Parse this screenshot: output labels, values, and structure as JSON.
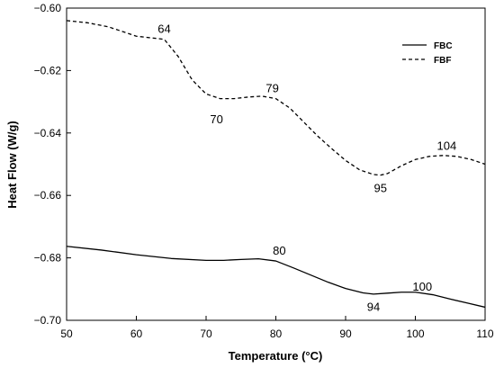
{
  "chart_data": {
    "type": "line",
    "xlabel": "Temperature (°C)",
    "ylabel": "Heat Flow (W/g)",
    "xlim": [
      50,
      110
    ],
    "ylim": [
      -0.7,
      -0.6
    ],
    "x_ticks": [
      50,
      60,
      70,
      80,
      90,
      100,
      110
    ],
    "y_ticks": [
      -0.6,
      -0.62,
      -0.64,
      -0.66,
      -0.68,
      -0.7
    ],
    "x_tick_labels": [
      "50",
      "60",
      "70",
      "80",
      "90",
      "100",
      "110"
    ],
    "y_tick_labels": [
      "-0.60",
      "-0.62",
      "-0.64",
      "-0.66",
      "-0.68",
      "-0.70"
    ],
    "grid": false,
    "legend_position": "top-right",
    "series": [
      {
        "name": "FBC",
        "style": "solid",
        "color": "#000000",
        "x": [
          50,
          55,
          60,
          65,
          70,
          72.5,
          75,
          77.5,
          80,
          82.5,
          85,
          87.5,
          90,
          92.5,
          94,
          96,
          98,
          100,
          102.5,
          105,
          107.5,
          110
        ],
        "y": [
          -0.6763,
          -0.6775,
          -0.679,
          -0.6802,
          -0.6808,
          -0.6808,
          -0.6805,
          -0.6803,
          -0.681,
          -0.6832,
          -0.6855,
          -0.6878,
          -0.6898,
          -0.6912,
          -0.6916,
          -0.6913,
          -0.691,
          -0.691,
          -0.6918,
          -0.6932,
          -0.6945,
          -0.6958
        ]
      },
      {
        "name": "FBF",
        "style": "dashed",
        "color": "#000000",
        "x": [
          50,
          53,
          56,
          60,
          62,
          64,
          66,
          68,
          70,
          72,
          74,
          76,
          78,
          80,
          82,
          84,
          86,
          88,
          90,
          92,
          94,
          95,
          96,
          98,
          100,
          102,
          104,
          106,
          108,
          110
        ],
        "y": [
          -0.604,
          -0.6047,
          -0.606,
          -0.609,
          -0.6095,
          -0.61,
          -0.6155,
          -0.623,
          -0.6275,
          -0.629,
          -0.629,
          -0.6285,
          -0.6282,
          -0.629,
          -0.632,
          -0.6365,
          -0.641,
          -0.645,
          -0.6488,
          -0.6518,
          -0.6533,
          -0.6535,
          -0.653,
          -0.6505,
          -0.6485,
          -0.6475,
          -0.6472,
          -0.6475,
          -0.6485,
          -0.65
        ]
      }
    ],
    "annotations": [
      {
        "text": "64",
        "x": 64,
        "y": -0.6065
      },
      {
        "text": "70",
        "x": 71.5,
        "y": -0.6355
      },
      {
        "text": "79",
        "x": 79.5,
        "y": -0.6255
      },
      {
        "text": "95",
        "x": 95,
        "y": -0.6575
      },
      {
        "text": "104",
        "x": 104.5,
        "y": -0.644
      },
      {
        "text": "80",
        "x": 80.5,
        "y": -0.6775
      },
      {
        "text": "94",
        "x": 94,
        "y": -0.6955
      },
      {
        "text": "100",
        "x": 101,
        "y": -0.689
      }
    ]
  }
}
